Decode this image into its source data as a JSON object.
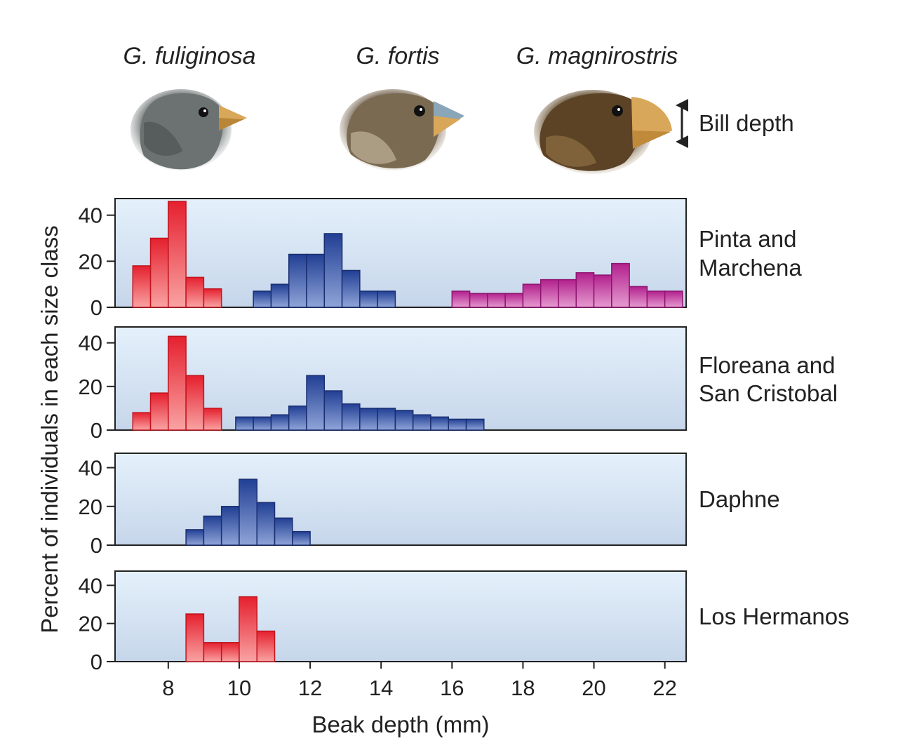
{
  "species_labels": [
    "G. fuliginosa",
    "G. fortis",
    "G. magnirostris"
  ],
  "bill_depth_label": "Bill depth",
  "colors": {
    "G. fuliginosa": "#e8323e",
    "G. fortis": "#2c4fa8",
    "G. magnirostris": "#c0309a",
    "panel_top": "#e4f0fb",
    "panel_bottom": "#c6d6ea"
  },
  "chart_data": {
    "type": "bar",
    "xlabel": "Beak depth (mm)",
    "ylabel": "Percent of individuals in each size class",
    "xlim": [
      6.5,
      22.6
    ],
    "ylim": [
      0,
      46
    ],
    "x_ticks": [
      8,
      10,
      12,
      14,
      16,
      18,
      20,
      22
    ],
    "y_ticks": [
      0,
      20,
      40
    ],
    "bin_width": 0.5,
    "panels": [
      {
        "name": "Pinta and\nMarchena",
        "series": [
          {
            "species": "G. fuliginosa",
            "bins": [
              [
                7.0,
                18
              ],
              [
                7.5,
                30
              ],
              [
                8.0,
                46
              ],
              [
                8.5,
                13
              ],
              [
                9.0,
                8
              ]
            ]
          },
          {
            "species": "G. fortis",
            "bins": [
              [
                10.4,
                7
              ],
              [
                10.9,
                10
              ],
              [
                11.4,
                23
              ],
              [
                11.9,
                23
              ],
              [
                12.4,
                32
              ],
              [
                12.9,
                16
              ],
              [
                13.4,
                7
              ],
              [
                13.9,
                7
              ]
            ]
          },
          {
            "species": "G. magnirostris",
            "bins": [
              [
                16.0,
                7
              ],
              [
                16.5,
                6
              ],
              [
                17.0,
                6
              ],
              [
                17.5,
                6
              ],
              [
                18.0,
                10
              ],
              [
                18.5,
                12
              ],
              [
                19.0,
                12
              ],
              [
                19.5,
                15
              ],
              [
                20.0,
                14
              ],
              [
                20.5,
                19
              ],
              [
                21.0,
                9
              ],
              [
                21.5,
                7
              ],
              [
                22.0,
                7
              ]
            ]
          }
        ]
      },
      {
        "name": "Floreana and\nSan Cristobal",
        "series": [
          {
            "species": "G. fuliginosa",
            "bins": [
              [
                7.0,
                8
              ],
              [
                7.5,
                17
              ],
              [
                8.0,
                43
              ],
              [
                8.5,
                25
              ],
              [
                9.0,
                10
              ]
            ]
          },
          {
            "species": "G. fortis",
            "bins": [
              [
                9.9,
                6
              ],
              [
                10.4,
                6
              ],
              [
                10.9,
                7
              ],
              [
                11.4,
                11
              ],
              [
                11.9,
                25
              ],
              [
                12.4,
                18
              ],
              [
                12.9,
                12
              ],
              [
                13.4,
                10
              ],
              [
                13.9,
                10
              ],
              [
                14.4,
                9
              ],
              [
                14.9,
                7
              ],
              [
                15.4,
                6
              ],
              [
                15.9,
                5
              ],
              [
                16.4,
                5
              ]
            ]
          }
        ]
      },
      {
        "name": "Daphne",
        "series": [
          {
            "species": "G. fortis",
            "bins": [
              [
                8.5,
                8
              ],
              [
                9.0,
                15
              ],
              [
                9.5,
                20
              ],
              [
                10.0,
                34
              ],
              [
                10.5,
                22
              ],
              [
                11.0,
                14
              ],
              [
                11.5,
                7
              ]
            ]
          }
        ]
      },
      {
        "name": "Los Hermanos",
        "series": [
          {
            "species": "G. fuliginosa",
            "bins": [
              [
                8.5,
                25
              ],
              [
                9.0,
                10
              ],
              [
                9.5,
                10
              ],
              [
                10.0,
                34
              ],
              [
                10.5,
                16
              ]
            ]
          }
        ]
      }
    ]
  }
}
